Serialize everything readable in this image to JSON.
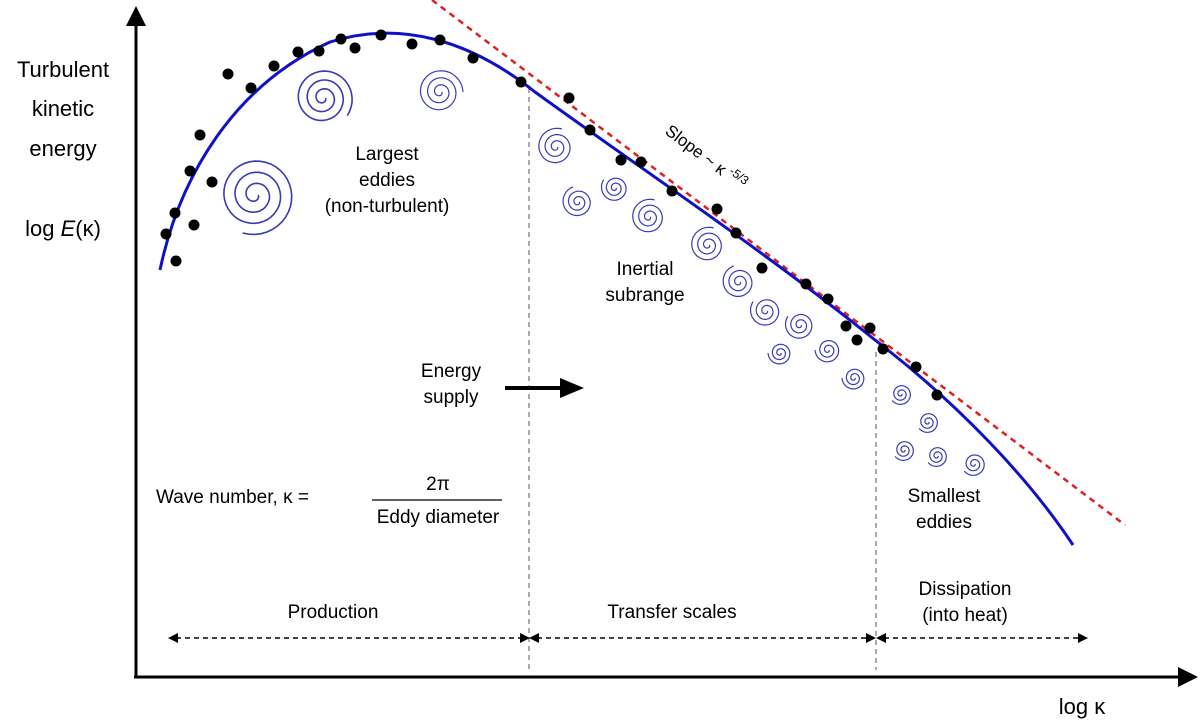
{
  "y_axis_label": {
    "line1": "Turbulent",
    "line2": "kinetic",
    "line3": "energy",
    "line4_prefix": "log ",
    "line4_italic": "E",
    "line4_suffix": "(κ)"
  },
  "x_axis_label": "log κ",
  "annotations": {
    "largest_eddies": [
      "Largest",
      "eddies",
      "(non-turbulent)"
    ],
    "inertial_subrange": [
      "Inertial",
      "subrange"
    ],
    "energy_supply": [
      "Energy",
      "supply"
    ],
    "smallest_eddies": [
      "Smallest",
      "eddies"
    ],
    "slope_prefix": "Slope ~ κ",
    "slope_exponent": "-5/3",
    "wave_number_lhs": "Wave number, κ =",
    "wave_number_numerator": "2π",
    "wave_number_denominator": "Eddy diameter"
  },
  "ranges": {
    "production": "Production",
    "transfer": "Transfer scales",
    "dissipation": [
      "Dissipation",
      "(into heat)"
    ]
  },
  "colors": {
    "curve": "#1010c8",
    "slope_line": "#e02020",
    "eddy": "#3a3ab8",
    "points": "#000000",
    "axes": "#000000"
  },
  "icons": [
    "spiral-eddy-icon",
    "arrow-right-icon"
  ]
}
